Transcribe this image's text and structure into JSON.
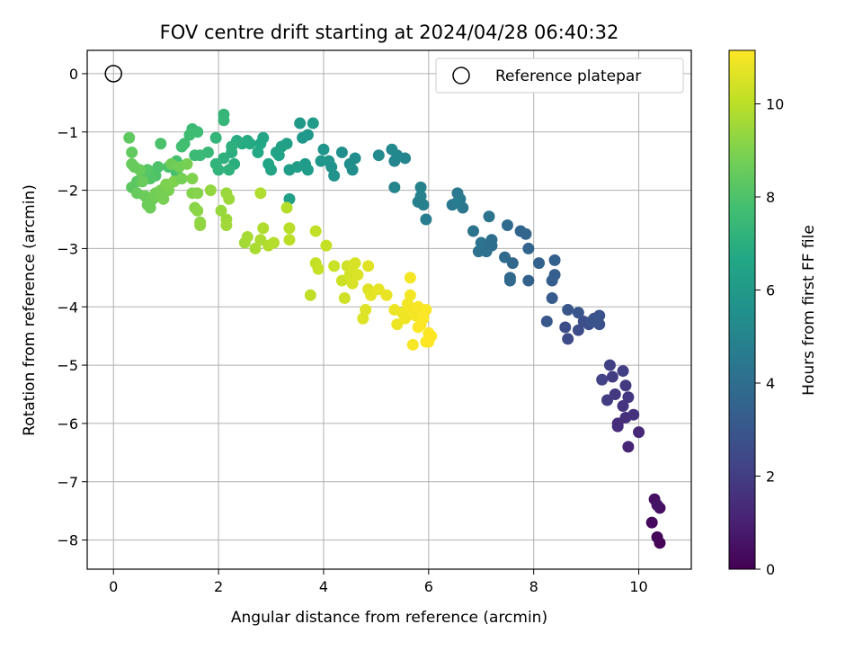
{
  "chart_data": {
    "type": "scatter",
    "title": "FOV centre drift starting at 2024/04/28 06:40:32",
    "xlabel": "Angular distance from reference (arcmin)",
    "ylabel": "Rotation from reference (arcmin)",
    "xlim": [
      -0.5,
      11
    ],
    "ylim": [
      -8.5,
      0.4
    ],
    "xticks": [
      0,
      2,
      4,
      6,
      8,
      10
    ],
    "yticks": [
      0,
      -1,
      -2,
      -3,
      -4,
      -5,
      -6,
      -7,
      -8
    ],
    "grid": true,
    "legend": {
      "position": "top-right",
      "entries": [
        "Reference platepar"
      ]
    },
    "reference_point": {
      "x": 0,
      "y": 0,
      "label": "Reference platepar"
    },
    "colorbar": {
      "label": "Hours from first FF file",
      "range": [
        0,
        11.15
      ],
      "ticks": [
        0,
        2,
        4,
        6,
        8,
        10
      ],
      "colormap": "viridis"
    },
    "series": [
      {
        "colored_by": "hours",
        "points": [
          [
            10.4,
            -8.05,
            0.1
          ],
          [
            10.35,
            -7.95,
            0.2
          ],
          [
            10.25,
            -7.7,
            0.3
          ],
          [
            10.4,
            -7.45,
            0.4
          ],
          [
            10.3,
            -7.3,
            0.5
          ],
          [
            10.35,
            -7.4,
            0.6
          ],
          [
            9.8,
            -6.4,
            1.2
          ],
          [
            10.0,
            -6.15,
            1.3
          ],
          [
            9.6,
            -6.05,
            1.4
          ],
          [
            9.75,
            -5.9,
            1.5
          ],
          [
            9.9,
            -5.85,
            1.6
          ],
          [
            9.7,
            -5.7,
            1.7
          ],
          [
            9.8,
            -5.55,
            1.8
          ],
          [
            9.55,
            -5.5,
            1.85
          ],
          [
            9.75,
            -5.35,
            1.9
          ],
          [
            9.5,
            -5.2,
            2.0
          ],
          [
            9.7,
            -5.1,
            2.05
          ],
          [
            9.45,
            -5.0,
            2.1
          ],
          [
            9.3,
            -5.25,
            2.15
          ],
          [
            9.4,
            -5.6,
            2.0
          ],
          [
            9.6,
            -6.0,
            1.45
          ],
          [
            8.65,
            -4.55,
            2.5
          ],
          [
            8.85,
            -4.4,
            2.55
          ],
          [
            8.6,
            -4.35,
            2.6
          ],
          [
            9.05,
            -4.3,
            2.65
          ],
          [
            8.95,
            -4.25,
            2.7
          ],
          [
            9.25,
            -4.3,
            2.75
          ],
          [
            9.15,
            -4.2,
            2.8
          ],
          [
            9.25,
            -4.15,
            2.85
          ],
          [
            9.1,
            -4.25,
            2.9
          ],
          [
            8.85,
            -4.1,
            2.95
          ],
          [
            8.65,
            -4.05,
            3.0
          ],
          [
            8.25,
            -4.25,
            3.05
          ],
          [
            8.35,
            -3.85,
            3.2
          ],
          [
            8.35,
            -3.55,
            3.3
          ],
          [
            8.4,
            -3.45,
            3.35
          ],
          [
            8.4,
            -3.2,
            3.4
          ],
          [
            8.1,
            -3.25,
            3.45
          ],
          [
            7.9,
            -3.55,
            3.5
          ],
          [
            7.9,
            -3.0,
            3.55
          ],
          [
            7.75,
            -2.7,
            3.6
          ],
          [
            7.85,
            -2.75,
            3.65
          ],
          [
            7.6,
            -3.25,
            3.7
          ],
          [
            7.55,
            -3.5,
            3.75
          ],
          [
            7.55,
            -3.55,
            3.8
          ],
          [
            7.45,
            -3.15,
            3.85
          ],
          [
            7.5,
            -2.6,
            3.9
          ],
          [
            7.2,
            -2.95,
            4.0
          ],
          [
            7.2,
            -2.85,
            4.05
          ],
          [
            7.1,
            -3.05,
            4.1
          ],
          [
            6.95,
            -3.05,
            4.15
          ],
          [
            7.0,
            -2.9,
            4.2
          ],
          [
            6.85,
            -2.7,
            4.25
          ],
          [
            7.15,
            -2.45,
            4.3
          ],
          [
            6.65,
            -2.3,
            4.4
          ],
          [
            6.6,
            -2.15,
            4.45
          ],
          [
            6.55,
            -2.05,
            4.5
          ],
          [
            6.45,
            -2.25,
            4.55
          ],
          [
            6.55,
            -2.2,
            4.6
          ],
          [
            5.95,
            -2.5,
            4.7
          ],
          [
            5.9,
            -2.25,
            4.75
          ],
          [
            5.8,
            -2.2,
            4.8
          ],
          [
            5.85,
            -2.1,
            4.85
          ],
          [
            5.85,
            -1.95,
            4.9
          ],
          [
            5.35,
            -1.95,
            5.0
          ],
          [
            5.55,
            -1.45,
            5.05
          ],
          [
            5.35,
            -1.5,
            5.1
          ],
          [
            5.4,
            -1.4,
            5.15
          ],
          [
            5.3,
            -1.3,
            5.2
          ],
          [
            5.05,
            -1.4,
            5.3
          ],
          [
            4.6,
            -1.45,
            5.4
          ],
          [
            4.5,
            -1.55,
            5.45
          ],
          [
            4.55,
            -1.65,
            5.5
          ],
          [
            4.35,
            -1.35,
            5.55
          ],
          [
            4.2,
            -1.75,
            5.6
          ],
          [
            4.15,
            -1.6,
            5.65
          ],
          [
            4.1,
            -1.5,
            5.7
          ],
          [
            4.0,
            -1.3,
            5.75
          ],
          [
            3.95,
            -1.5,
            5.8
          ],
          [
            3.7,
            -1.05,
            5.85
          ],
          [
            3.6,
            -1.1,
            5.9
          ],
          [
            3.55,
            -0.85,
            5.95
          ],
          [
            3.8,
            -0.85,
            6.0
          ],
          [
            3.65,
            -1.55,
            6.05
          ],
          [
            3.7,
            -1.65,
            6.1
          ],
          [
            3.5,
            -1.6,
            6.15
          ],
          [
            3.35,
            -1.65,
            6.2
          ],
          [
            3.35,
            -2.15,
            6.25
          ],
          [
            3.3,
            -1.2,
            6.3
          ],
          [
            3.2,
            -1.25,
            6.35
          ],
          [
            3.15,
            -1.4,
            6.4
          ],
          [
            3.1,
            -1.35,
            6.45
          ],
          [
            3.0,
            -1.65,
            6.5
          ],
          [
            2.95,
            -1.55,
            6.55
          ],
          [
            2.85,
            -1.1,
            6.6
          ],
          [
            2.8,
            -1.2,
            6.65
          ],
          [
            2.75,
            -1.35,
            6.7
          ],
          [
            2.6,
            -1.2,
            6.75
          ],
          [
            2.55,
            -1.15,
            6.8
          ],
          [
            2.45,
            -1.2,
            6.85
          ],
          [
            2.35,
            -1.15,
            6.9
          ],
          [
            2.25,
            -1.35,
            6.95
          ],
          [
            2.3,
            -1.55,
            7.0
          ],
          [
            2.25,
            -1.25,
            7.05
          ],
          [
            2.1,
            -1.45,
            7.1
          ],
          [
            2.2,
            -1.65,
            7.15
          ],
          [
            2.0,
            -1.65,
            7.2
          ],
          [
            1.95,
            -1.55,
            7.25
          ],
          [
            1.95,
            -1.1,
            7.3
          ],
          [
            2.1,
            -0.7,
            7.3
          ],
          [
            2.1,
            -0.8,
            7.35
          ],
          [
            1.8,
            -1.35,
            7.4
          ],
          [
            1.65,
            -1.4,
            7.45
          ],
          [
            1.55,
            -1.4,
            7.5
          ],
          [
            1.5,
            -0.95,
            7.55
          ],
          [
            1.6,
            -1.0,
            7.6
          ],
          [
            1.45,
            -1.05,
            7.65
          ],
          [
            1.35,
            -1.2,
            7.7
          ],
          [
            1.3,
            -1.25,
            7.75
          ],
          [
            1.2,
            -1.5,
            7.8
          ],
          [
            1.2,
            -1.7,
            7.85
          ],
          [
            1.05,
            -1.6,
            7.9
          ],
          [
            0.9,
            -1.2,
            7.95
          ],
          [
            0.85,
            -1.6,
            8.0
          ],
          [
            0.8,
            -1.75,
            8.05
          ],
          [
            0.7,
            -1.8,
            8.1
          ],
          [
            0.65,
            -1.65,
            8.15
          ],
          [
            0.55,
            -1.75,
            8.2
          ],
          [
            0.45,
            -1.85,
            8.25
          ],
          [
            0.35,
            -1.95,
            8.3
          ],
          [
            0.3,
            -1.1,
            8.35
          ],
          [
            0.35,
            -1.35,
            8.4
          ],
          [
            0.4,
            -1.6,
            8.45
          ],
          [
            0.45,
            -2.05,
            8.5
          ],
          [
            0.55,
            -1.85,
            8.55
          ],
          [
            0.6,
            -2.1,
            8.6
          ],
          [
            0.7,
            -2.2,
            8.65
          ],
          [
            0.75,
            -2.15,
            8.7
          ],
          [
            0.8,
            -2.05,
            8.75
          ],
          [
            0.9,
            -2.0,
            8.8
          ],
          [
            0.95,
            -2.15,
            8.85
          ],
          [
            1.05,
            -2.0,
            8.9
          ],
          [
            1.0,
            -1.9,
            8.95
          ],
          [
            1.15,
            -1.85,
            9.0
          ],
          [
            0.35,
            -1.55,
            8.5
          ],
          [
            0.5,
            -1.65,
            8.55
          ],
          [
            0.65,
            -2.25,
            8.6
          ],
          [
            0.7,
            -2.3,
            8.65
          ],
          [
            1.1,
            -1.55,
            8.7
          ],
          [
            1.25,
            -1.6,
            8.75
          ],
          [
            1.3,
            -1.8,
            8.8
          ],
          [
            1.4,
            -1.55,
            8.85
          ],
          [
            1.5,
            -1.8,
            9.0
          ],
          [
            1.5,
            -2.05,
            9.05
          ],
          [
            1.6,
            -2.05,
            9.1
          ],
          [
            1.55,
            -2.3,
            9.15
          ],
          [
            1.6,
            -2.35,
            9.2
          ],
          [
            1.65,
            -2.55,
            9.25
          ],
          [
            1.65,
            -2.6,
            9.3
          ],
          [
            1.85,
            -2.0,
            9.35
          ],
          [
            2.05,
            -2.35,
            9.4
          ],
          [
            2.15,
            -2.05,
            9.45
          ],
          [
            2.2,
            -2.15,
            9.5
          ],
          [
            2.15,
            -2.5,
            9.5
          ],
          [
            2.15,
            -2.6,
            9.55
          ],
          [
            2.5,
            -2.9,
            9.6
          ],
          [
            2.55,
            -2.8,
            9.65
          ],
          [
            2.7,
            -3.0,
            9.7
          ],
          [
            2.8,
            -2.85,
            9.75
          ],
          [
            2.85,
            -2.65,
            9.8
          ],
          [
            2.8,
            -2.05,
            9.8
          ],
          [
            2.95,
            -2.95,
            9.85
          ],
          [
            3.05,
            -2.9,
            9.9
          ],
          [
            3.3,
            -2.3,
            9.9
          ],
          [
            3.35,
            -2.65,
            9.95
          ],
          [
            3.35,
            -2.85,
            10.0
          ],
          [
            3.75,
            -3.8,
            10.05
          ],
          [
            3.85,
            -2.7,
            10.1
          ],
          [
            3.85,
            -3.25,
            10.15
          ],
          [
            3.9,
            -3.35,
            10.2
          ],
          [
            4.05,
            -2.95,
            10.2
          ],
          [
            4.2,
            -3.3,
            10.25
          ],
          [
            4.35,
            -3.55,
            10.3
          ],
          [
            4.4,
            -3.85,
            10.35
          ],
          [
            4.45,
            -3.3,
            10.35
          ],
          [
            4.5,
            -3.45,
            10.4
          ],
          [
            4.55,
            -3.3,
            10.45
          ],
          [
            4.6,
            -3.25,
            10.5
          ],
          [
            4.55,
            -3.6,
            10.5
          ],
          [
            4.65,
            -3.45,
            10.55
          ],
          [
            4.75,
            -4.2,
            10.6
          ],
          [
            4.8,
            -4.05,
            10.6
          ],
          [
            4.85,
            -3.7,
            10.65
          ],
          [
            4.85,
            -3.3,
            10.65
          ],
          [
            4.9,
            -3.8,
            10.7
          ],
          [
            5.05,
            -3.7,
            10.75
          ],
          [
            5.2,
            -3.8,
            10.8
          ],
          [
            5.35,
            -4.05,
            10.85
          ],
          [
            5.4,
            -4.3,
            10.85
          ],
          [
            5.5,
            -4.1,
            10.9
          ],
          [
            5.55,
            -4.2,
            10.9
          ],
          [
            5.6,
            -3.95,
            10.95
          ],
          [
            5.65,
            -3.8,
            10.95
          ],
          [
            5.65,
            -3.5,
            11.0
          ],
          [
            5.7,
            -4.05,
            11.0
          ],
          [
            5.75,
            -4.15,
            11.0
          ],
          [
            5.7,
            -4.65,
            11.05
          ],
          [
            5.8,
            -4.0,
            11.05
          ],
          [
            5.85,
            -4.3,
            11.05
          ],
          [
            5.9,
            -4.2,
            11.1
          ],
          [
            5.95,
            -4.6,
            11.1
          ],
          [
            6.0,
            -4.45,
            11.1
          ],
          [
            5.95,
            -4.05,
            11.1
          ],
          [
            6.05,
            -4.5,
            11.15
          ],
          [
            6.0,
            -4.6,
            11.15
          ],
          [
            5.8,
            -4.35,
            11.15
          ]
        ]
      }
    ]
  }
}
